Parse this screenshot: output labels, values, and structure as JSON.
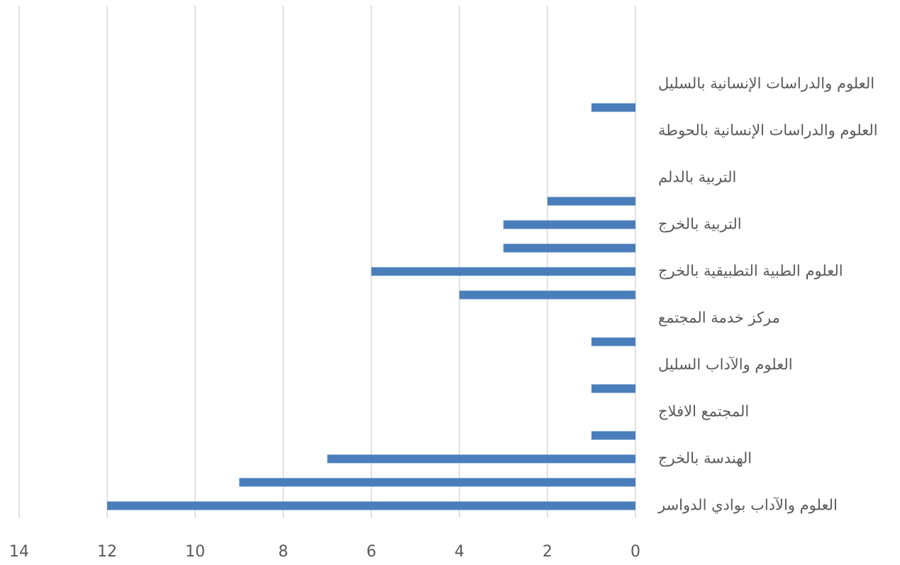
{
  "chart_data": {
    "type": "bar",
    "orientation": "horizontal",
    "x_reversed": true,
    "categories": [
      "العلوم والآداب بوادي الدواسر",
      null,
      "الهندسة بالخرج",
      null,
      "المجتمع الافلاج",
      null,
      "العلوم والآداب السليل",
      null,
      "مركز خدمة المجتمع",
      null,
      "العلوم الطبية التطبيقية بالخرج",
      null,
      "التربية بالخرج",
      null,
      "التربية بالدلم",
      null,
      "العلوم والدراسات الإنسانية بالحوطة",
      null,
      "العلوم والدراسات الإنسانية بالسليل",
      null,
      null,
      null
    ],
    "values": [
      12,
      9,
      7,
      1,
      0,
      1,
      0,
      1,
      0,
      4,
      6,
      3,
      3,
      2,
      0,
      0,
      0,
      1,
      0,
      0,
      0,
      0
    ],
    "color": "#4a7ebb",
    "xlim": [
      0,
      14
    ],
    "xticks": [
      0,
      2,
      4,
      6,
      8,
      10,
      12,
      14
    ],
    "grid": true
  }
}
